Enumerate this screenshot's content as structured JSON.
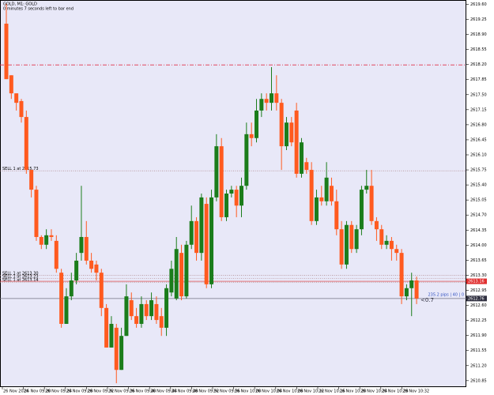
{
  "chart_data": {
    "type": "candlestick",
    "title": "GOLD, M1:  GOLD",
    "subtitle": "0 minutes 7 seconds left to bar end",
    "up_color": "#1b7d1b",
    "down_color": "#ff5a1f",
    "background": "#e8e8f8",
    "open": [
      2619.15,
      2617.95,
      2617.53,
      2617.35,
      2616.98,
      2615.75,
      2615.29,
      2614.19,
      2614.01,
      2614.23,
      2614.1,
      2613.36,
      2612.17,
      2612.81,
      2613.18,
      2613.82,
      2614.19,
      2613.64,
      2613.55,
      2613.36,
      2612.54,
      2611.62,
      2612.08,
      2611.1,
      2611.89,
      2612.72,
      2612.35,
      2612.17,
      2612.63,
      2612.35,
      2612.63,
      2612.35,
      2612.08,
      2612.9,
      2612.76,
      2613.82,
      2612.81,
      2614.01,
      2614.56,
      2613.82,
      2614.96,
      2613.09,
      2615.11,
      2616.3,
      2614.65,
      2615.2,
      2615.29,
      2614.92,
      2615.38,
      2616.58,
      2616.49,
      2617.13,
      2617.4,
      2617.31,
      2617.53,
      2617.31,
      2616.3,
      2616.85,
      2617.13,
      2615.66,
      2615.93,
      2615.75,
      2614.56,
      2615.11,
      2615.02,
      2615.38,
      2615.02,
      2614.37,
      2613.55,
      2614.47,
      2613.91,
      2614.37,
      2615.29,
      2615.38,
      2614.56,
      2614.37,
      2614.01,
      2614.1,
      2613.91,
      2613.82,
      2612.81,
      2613.0,
      2613.18
    ],
    "high": [
      2619.61,
      2617.95,
      2617.53,
      2617.4,
      2617.13,
      2615.75,
      2615.38,
      2614.23,
      2614.37,
      2614.37,
      2614.23,
      2613.45,
      2613.0,
      2613.36,
      2613.82,
      2615.38,
      2614.56,
      2613.82,
      2613.64,
      2613.45,
      2612.63,
      2612.35,
      2612.17,
      2612.08,
      2613.09,
      2612.9,
      2612.54,
      2612.81,
      2612.72,
      2612.9,
      2612.81,
      2612.54,
      2613.09,
      2613.64,
      2614.19,
      2614.01,
      2614.1,
      2614.92,
      2614.65,
      2615.2,
      2615.11,
      2615.29,
      2616.58,
      2616.49,
      2615.29,
      2615.38,
      2615.38,
      2615.57,
      2616.85,
      2616.85,
      2617.4,
      2617.53,
      2617.53,
      2618.14,
      2617.95,
      2617.4,
      2616.98,
      2616.98,
      2617.31,
      2616.49,
      2616.03,
      2615.93,
      2615.29,
      2615.38,
      2615.93,
      2615.57,
      2615.29,
      2614.56,
      2614.56,
      2614.56,
      2614.47,
      2615.38,
      2615.75,
      2615.75,
      2614.65,
      2614.47,
      2614.23,
      2614.19,
      2614.01,
      2613.91,
      2613.09,
      2613.36,
      2613.27
    ],
    "low": [
      2617.86,
      2617.4,
      2617.13,
      2616.85,
      2615.66,
      2615.11,
      2614.1,
      2613.91,
      2613.91,
      2614.1,
      2613.36,
      2612.08,
      2612.17,
      2612.72,
      2613.09,
      2613.64,
      2613.55,
      2613.36,
      2613.18,
      2612.35,
      2611.62,
      2611.62,
      2610.79,
      2611.1,
      2611.89,
      2612.26,
      2612.08,
      2612.08,
      2612.26,
      2612.26,
      2612.17,
      2611.89,
      2611.89,
      2612.81,
      2612.72,
      2612.72,
      2612.76,
      2613.91,
      2613.64,
      2613.64,
      2613.0,
      2613.0,
      2615.02,
      2614.56,
      2614.56,
      2615.11,
      2614.65,
      2614.65,
      2615.29,
      2616.3,
      2616.39,
      2616.98,
      2617.13,
      2617.13,
      2617.13,
      2615.75,
      2616.21,
      2616.3,
      2615.57,
      2615.57,
      2615.66,
      2614.47,
      2614.47,
      2614.92,
      2614.92,
      2614.92,
      2614.23,
      2613.45,
      2613.45,
      2613.82,
      2613.82,
      2614.23,
      2615.2,
      2614.47,
      2614.1,
      2613.91,
      2613.91,
      2613.64,
      2613.64,
      2612.63,
      2612.72,
      2612.35,
      2612.63
    ],
    "close": [
      2617.86,
      2617.53,
      2617.31,
      2616.98,
      2615.75,
      2615.29,
      2614.19,
      2614.01,
      2614.23,
      2614.19,
      2613.45,
      2612.17,
      2612.81,
      2613.18,
      2613.64,
      2614.19,
      2613.64,
      2613.45,
      2613.36,
      2612.54,
      2611.62,
      2612.17,
      2611.1,
      2611.89,
      2612.81,
      2612.35,
      2612.17,
      2612.63,
      2612.35,
      2612.72,
      2612.26,
      2612.08,
      2613.0,
      2613.45,
      2613.91,
      2612.81,
      2614.01,
      2614.56,
      2613.82,
      2615.11,
      2613.09,
      2615.11,
      2616.3,
      2614.65,
      2615.2,
      2615.29,
      2614.92,
      2615.38,
      2616.58,
      2616.49,
      2617.13,
      2617.4,
      2617.31,
      2617.53,
      2617.31,
      2616.3,
      2616.85,
      2616.39,
      2615.66,
      2616.39,
      2615.75,
      2614.56,
      2615.11,
      2615.02,
      2615.57,
      2615.02,
      2614.37,
      2613.55,
      2614.47,
      2613.91,
      2614.37,
      2615.29,
      2615.38,
      2614.56,
      2614.37,
      2614.01,
      2614.1,
      2613.91,
      2613.82,
      2612.81,
      2613.0,
      2613.18,
      2612.76
    ],
    "ylim": [
      2610.7,
      2619.7
    ],
    "yticks": [
      {
        "value": 2619.6,
        "label": "2619.60"
      },
      2619.25,
      {
        "value": 2618.9,
        "label": "2618.90"
      },
      2618.55,
      {
        "value": 2618.2,
        "label": "2618.20"
      },
      2617.85,
      {
        "value": 2617.5,
        "label": "2617.50"
      },
      2617.15,
      {
        "value": 2616.8,
        "label": "2616.80"
      },
      2616.45,
      {
        "value": 2616.1,
        "label": "2616.10"
      },
      2615.75,
      {
        "value": 2615.4,
        "label": "2615.40"
      },
      2615.05,
      {
        "value": 2614.7,
        "label": "2614.70"
      },
      2614.35,
      {
        "value": 2614,
        "label": "2614.00"
      },
      2613.65,
      {
        "value": 2613.3,
        "label": "2613.30"
      },
      2612.95,
      {
        "value": 2612.6,
        "label": "2612.60"
      },
      2612.25,
      {
        "value": 2611.9,
        "label": "2611.90"
      },
      2611.55,
      {
        "value": 2611.2,
        "label": "2611.20"
      },
      2610.85
    ],
    "x_labels": [
      "26 Nov 2024",
      "26 Nov 09:20",
      "26 Nov 09:24",
      "26 Nov 09:28",
      "26 Nov 09:32",
      "26 Nov 09:36",
      "26 Nov 09:40",
      "26 Nov 09:44",
      "26 Nov 09:48",
      "26 Nov 09:52",
      "26 Nov 09:56",
      "26 Nov 10:00",
      "26 Nov 10:04",
      "26 Nov 10:08",
      "26 Nov 10:12",
      "26 Nov 10:16",
      "26 Nov 10:20",
      "26 Nov 10:24",
      "26 Nov 10:28",
      "26 Nov 10:32"
    ],
    "level_line": 2618.19,
    "orders": [
      {
        "label": "SELL 1 at 2615.73",
        "price": 2615.73
      },
      {
        "label": "SELL 1 at 2613.30",
        "price": 2613.3
      },
      {
        "label": "SELL 1 at 2613.23",
        "price": 2613.23
      },
      {
        "label": "SELL 1 at 2613.14",
        "price": 2613.14
      }
    ],
    "ask": 2613.16,
    "bid": 2612.76,
    "info_text": "235.2 pips | 40 | 0",
    "spread_text": "<0.7"
  }
}
